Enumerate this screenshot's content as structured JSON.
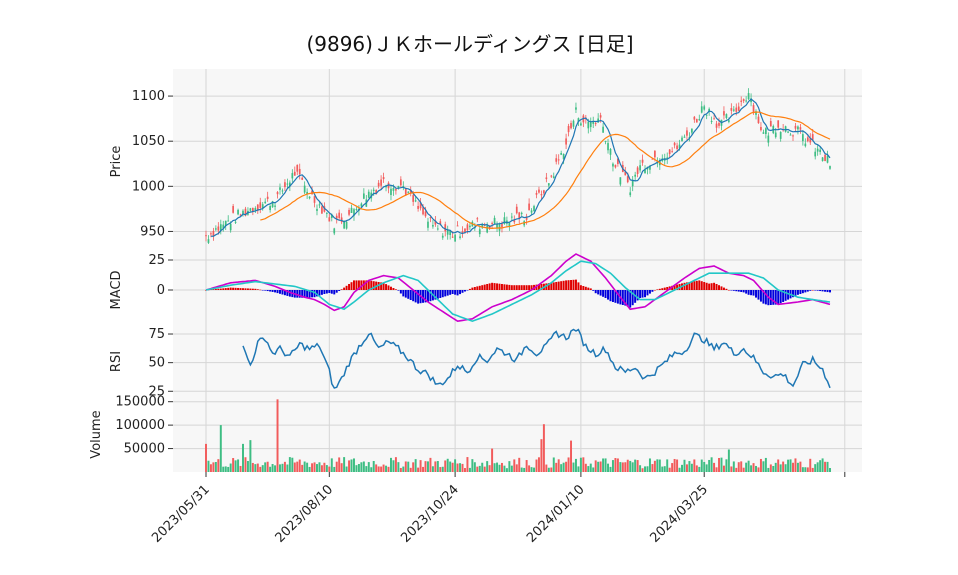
{
  "chart_data": {
    "type": "candlestick",
    "title": "(9896)ＪＫホールディングス [日足]",
    "x_tick_labels": [
      "2023/05/31",
      "2023/08/10",
      "2023/10/24",
      "2024/01/10",
      "2024/03/25"
    ],
    "n_sessions": 254,
    "x_tick_indices": [
      0,
      50,
      101,
      152,
      202
    ],
    "colors": {
      "up": "#3dbd83",
      "down": "#f25b5b",
      "panel_bg": "#f7f7f7",
      "grid": "#d6d6d6",
      "ma_short": "#1f77b4",
      "ma_long": "#ff7f0e",
      "macd": "#cc00cc",
      "signal": "#22c7c7",
      "hist_up": "#e00000",
      "hist_down": "#0000dd",
      "rsi": "#1f77b4"
    },
    "panels": {
      "price": {
        "ylabel": "Price",
        "ylim": [
          925,
          1130
        ],
        "yticks": [
          950,
          1000,
          1050,
          1100
        ],
        "close_anchors": [
          [
            0,
            945
          ],
          [
            10,
            963
          ],
          [
            20,
            978
          ],
          [
            28,
            985
          ],
          [
            36,
            1015
          ],
          [
            44,
            985
          ],
          [
            52,
            960
          ],
          [
            58,
            968
          ],
          [
            64,
            988
          ],
          [
            72,
            1005
          ],
          [
            80,
            1000
          ],
          [
            86,
            975
          ],
          [
            92,
            955
          ],
          [
            100,
            948
          ],
          [
            110,
            958
          ],
          [
            120,
            960
          ],
          [
            130,
            968
          ],
          [
            140,
            1010
          ],
          [
            146,
            1048
          ],
          [
            150,
            1082
          ],
          [
            154,
            1070
          ],
          [
            160,
            1075
          ],
          [
            166,
            1022
          ],
          [
            172,
            1000
          ],
          [
            176,
            1022
          ],
          [
            184,
            1035
          ],
          [
            190,
            1040
          ],
          [
            196,
            1060
          ],
          [
            202,
            1090
          ],
          [
            208,
            1068
          ],
          [
            214,
            1080
          ],
          [
            220,
            1105
          ],
          [
            226,
            1058
          ],
          [
            232,
            1068
          ],
          [
            240,
            1060
          ],
          [
            246,
            1045
          ],
          [
            253,
            1025
          ]
        ],
        "ma_short_label": "",
        "ma_long_label": ""
      },
      "macd": {
        "ylabel": "MACD",
        "ylim": [
          -30,
          30
        ],
        "yticks": [
          0,
          25
        ],
        "macd_anchors": [
          [
            0,
            0
          ],
          [
            10,
            6
          ],
          [
            20,
            8
          ],
          [
            28,
            3
          ],
          [
            34,
            -2
          ],
          [
            40,
            -6
          ],
          [
            44,
            -8
          ],
          [
            48,
            -12
          ],
          [
            52,
            -17
          ],
          [
            56,
            -14
          ],
          [
            60,
            -2
          ],
          [
            66,
            8
          ],
          [
            72,
            12
          ],
          [
            78,
            10
          ],
          [
            84,
            0
          ],
          [
            90,
            -10
          ],
          [
            96,
            -18
          ],
          [
            102,
            -26
          ],
          [
            108,
            -24
          ],
          [
            116,
            -14
          ],
          [
            124,
            -8
          ],
          [
            132,
            0
          ],
          [
            140,
            12
          ],
          [
            146,
            24
          ],
          [
            150,
            30
          ],
          [
            156,
            24
          ],
          [
            162,
            10
          ],
          [
            168,
            -6
          ],
          [
            172,
            -16
          ],
          [
            178,
            -14
          ],
          [
            186,
            -2
          ],
          [
            194,
            10
          ],
          [
            200,
            18
          ],
          [
            206,
            20
          ],
          [
            212,
            14
          ],
          [
            218,
            12
          ],
          [
            222,
            8
          ],
          [
            228,
            -6
          ],
          [
            232,
            -12
          ],
          [
            240,
            -10
          ],
          [
            246,
            -8
          ],
          [
            253,
            -12
          ]
        ],
        "signal_anchors": [
          [
            0,
            0
          ],
          [
            10,
            4
          ],
          [
            20,
            7
          ],
          [
            28,
            5
          ],
          [
            36,
            3
          ],
          [
            44,
            -2
          ],
          [
            50,
            -12
          ],
          [
            56,
            -16
          ],
          [
            60,
            -10
          ],
          [
            66,
            0
          ],
          [
            72,
            6
          ],
          [
            80,
            12
          ],
          [
            86,
            8
          ],
          [
            92,
            -4
          ],
          [
            100,
            -20
          ],
          [
            108,
            -26
          ],
          [
            116,
            -20
          ],
          [
            124,
            -12
          ],
          [
            132,
            -4
          ],
          [
            140,
            6
          ],
          [
            146,
            16
          ],
          [
            152,
            24
          ],
          [
            158,
            22
          ],
          [
            164,
            14
          ],
          [
            170,
            2
          ],
          [
            176,
            -8
          ],
          [
            182,
            -8
          ],
          [
            190,
            0
          ],
          [
            198,
            8
          ],
          [
            204,
            14
          ],
          [
            212,
            14
          ],
          [
            220,
            14
          ],
          [
            226,
            10
          ],
          [
            232,
            0
          ],
          [
            240,
            -6
          ],
          [
            246,
            -8
          ],
          [
            253,
            -10
          ]
        ]
      },
      "rsi": {
        "ylabel": "RSI",
        "ylim": [
          20,
          82
        ],
        "yticks": [
          25,
          50,
          75
        ],
        "anchors": [
          [
            15,
            63
          ],
          [
            18,
            48
          ],
          [
            21,
            67
          ],
          [
            24,
            72
          ],
          [
            27,
            58
          ],
          [
            30,
            62
          ],
          [
            34,
            55
          ],
          [
            38,
            66
          ],
          [
            42,
            62
          ],
          [
            46,
            65
          ],
          [
            50,
            42
          ],
          [
            52,
            26
          ],
          [
            55,
            36
          ],
          [
            58,
            50
          ],
          [
            62,
            64
          ],
          [
            66,
            76
          ],
          [
            70,
            62
          ],
          [
            74,
            68
          ],
          [
            78,
            62
          ],
          [
            82,
            54
          ],
          [
            86,
            44
          ],
          [
            90,
            40
          ],
          [
            94,
            30
          ],
          [
            98,
            36
          ],
          [
            102,
            48
          ],
          [
            106,
            42
          ],
          [
            110,
            55
          ],
          [
            114,
            52
          ],
          [
            118,
            62
          ],
          [
            122,
            58
          ],
          [
            126,
            52
          ],
          [
            130,
            66
          ],
          [
            134,
            58
          ],
          [
            138,
            64
          ],
          [
            142,
            76
          ],
          [
            146,
            72
          ],
          [
            150,
            80
          ],
          [
            154,
            64
          ],
          [
            158,
            58
          ],
          [
            162,
            62
          ],
          [
            166,
            46
          ],
          [
            170,
            42
          ],
          [
            174,
            46
          ],
          [
            178,
            36
          ],
          [
            182,
            42
          ],
          [
            186,
            50
          ],
          [
            190,
            58
          ],
          [
            194,
            60
          ],
          [
            198,
            74
          ],
          [
            202,
            70
          ],
          [
            206,
            62
          ],
          [
            210,
            68
          ],
          [
            214,
            58
          ],
          [
            218,
            62
          ],
          [
            222,
            54
          ],
          [
            226,
            42
          ],
          [
            230,
            38
          ],
          [
            234,
            40
          ],
          [
            238,
            30
          ],
          [
            242,
            48
          ],
          [
            246,
            52
          ],
          [
            250,
            44
          ],
          [
            253,
            30
          ]
        ]
      },
      "volume": {
        "ylabel": "Volume",
        "ylim": [
          0,
          160000
        ],
        "yticks": [
          50000,
          100000,
          150000
        ],
        "spikes": [
          [
            0,
            60000
          ],
          [
            6,
            100000
          ],
          [
            15,
            60000
          ],
          [
            18,
            68000
          ],
          [
            29,
            155000
          ],
          [
            137,
            102000
          ],
          [
            136,
            70000
          ],
          [
            148,
            67000
          ],
          [
            116,
            50000
          ],
          [
            212,
            48000
          ]
        ]
      }
    }
  }
}
